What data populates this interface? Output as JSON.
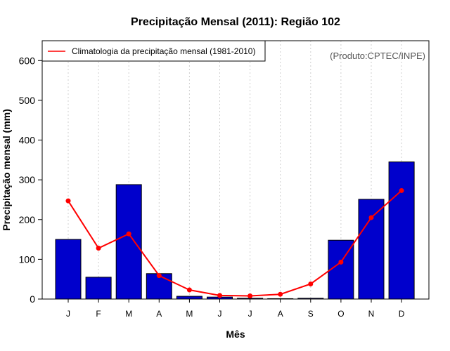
{
  "chart_data": {
    "type": "bar",
    "title": "Precipitação Mensal (2011): Região 102",
    "xlabel": "Mês",
    "ylabel": "Precipitação mensal (mm)",
    "ylim": [
      0,
      650
    ],
    "yticks": [
      0,
      100,
      200,
      300,
      400,
      500,
      600
    ],
    "categories": [
      "J",
      "F",
      "M",
      "A",
      "M",
      "J",
      "J",
      "A",
      "S",
      "O",
      "N",
      "D"
    ],
    "series": [
      {
        "name": "Precipitação mensal 2011",
        "type": "bar",
        "color": "#0000CC",
        "values": [
          150,
          55,
          288,
          64,
          7,
          5,
          2,
          1,
          2,
          148,
          251,
          345
        ]
      },
      {
        "name": "Climatologia da precipitação mensal (1981-2010)",
        "type": "line",
        "color": "#FF0000",
        "values": [
          247,
          128,
          164,
          59,
          23,
          9,
          8,
          12,
          38,
          93,
          205,
          273
        ]
      }
    ],
    "legend": {
      "position": "top-left",
      "entries": [
        "Climatologia da precipitação mensal (1981-2010)"
      ]
    },
    "credit": "(Produto:CPTEC/INPE)",
    "grid": "vertical dotted"
  }
}
